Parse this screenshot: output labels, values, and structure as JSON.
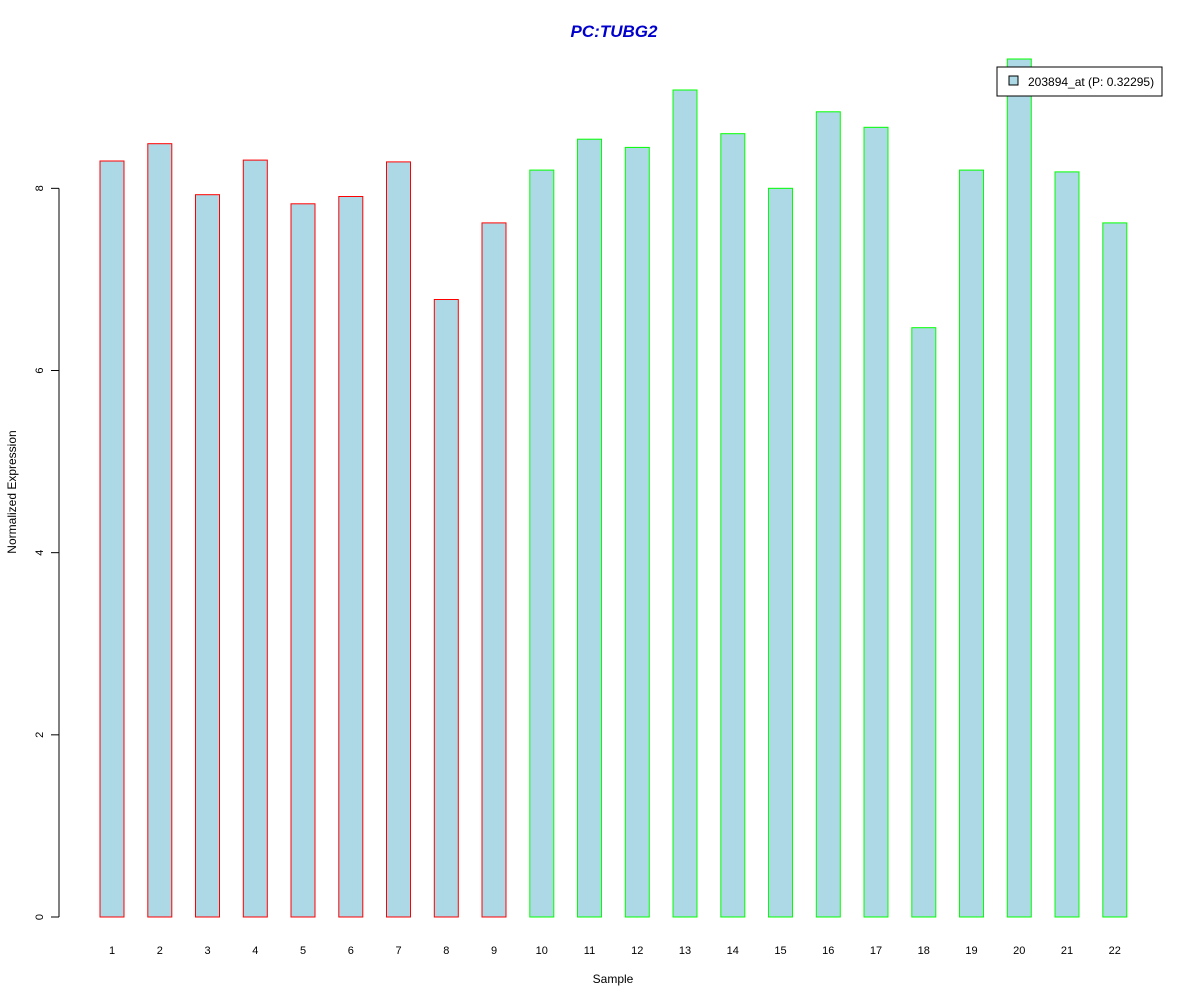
{
  "chart_data": {
    "type": "bar",
    "title": "PC:TUBG2",
    "title_color": "#0000cc",
    "xlabel": "Sample",
    "ylabel": "Normalized Expression",
    "categories": [
      "1",
      "2",
      "3",
      "4",
      "5",
      "6",
      "7",
      "8",
      "9",
      "10",
      "11",
      "12",
      "13",
      "14",
      "15",
      "16",
      "17",
      "18",
      "19",
      "20",
      "21",
      "22"
    ],
    "series": [
      {
        "name": "203894_at (P: 0.32295)",
        "values": [
          8.3,
          8.49,
          7.93,
          8.31,
          7.83,
          7.91,
          8.29,
          6.78,
          7.62,
          8.2,
          8.54,
          8.45,
          9.08,
          8.6,
          8.0,
          8.84,
          8.67,
          6.47,
          8.2,
          9.42,
          8.18,
          7.62
        ]
      }
    ],
    "bar_fill": "#add8e6",
    "group_border_colors": [
      "#ff0000",
      "#ff0000",
      "#ff0000",
      "#ff0000",
      "#ff0000",
      "#ff0000",
      "#ff0000",
      "#ff0000",
      "#ff0000",
      "#00ff00",
      "#00ff00",
      "#00ff00",
      "#00ff00",
      "#00ff00",
      "#00ff00",
      "#00ff00",
      "#00ff00",
      "#00ff00",
      "#00ff00",
      "#00ff00",
      "#00ff00",
      "#00ff00"
    ],
    "yticks": [
      0,
      2,
      4,
      6,
      8
    ],
    "ylim": [
      0,
      9.42
    ],
    "grid": false,
    "legend_position": "top-right"
  }
}
